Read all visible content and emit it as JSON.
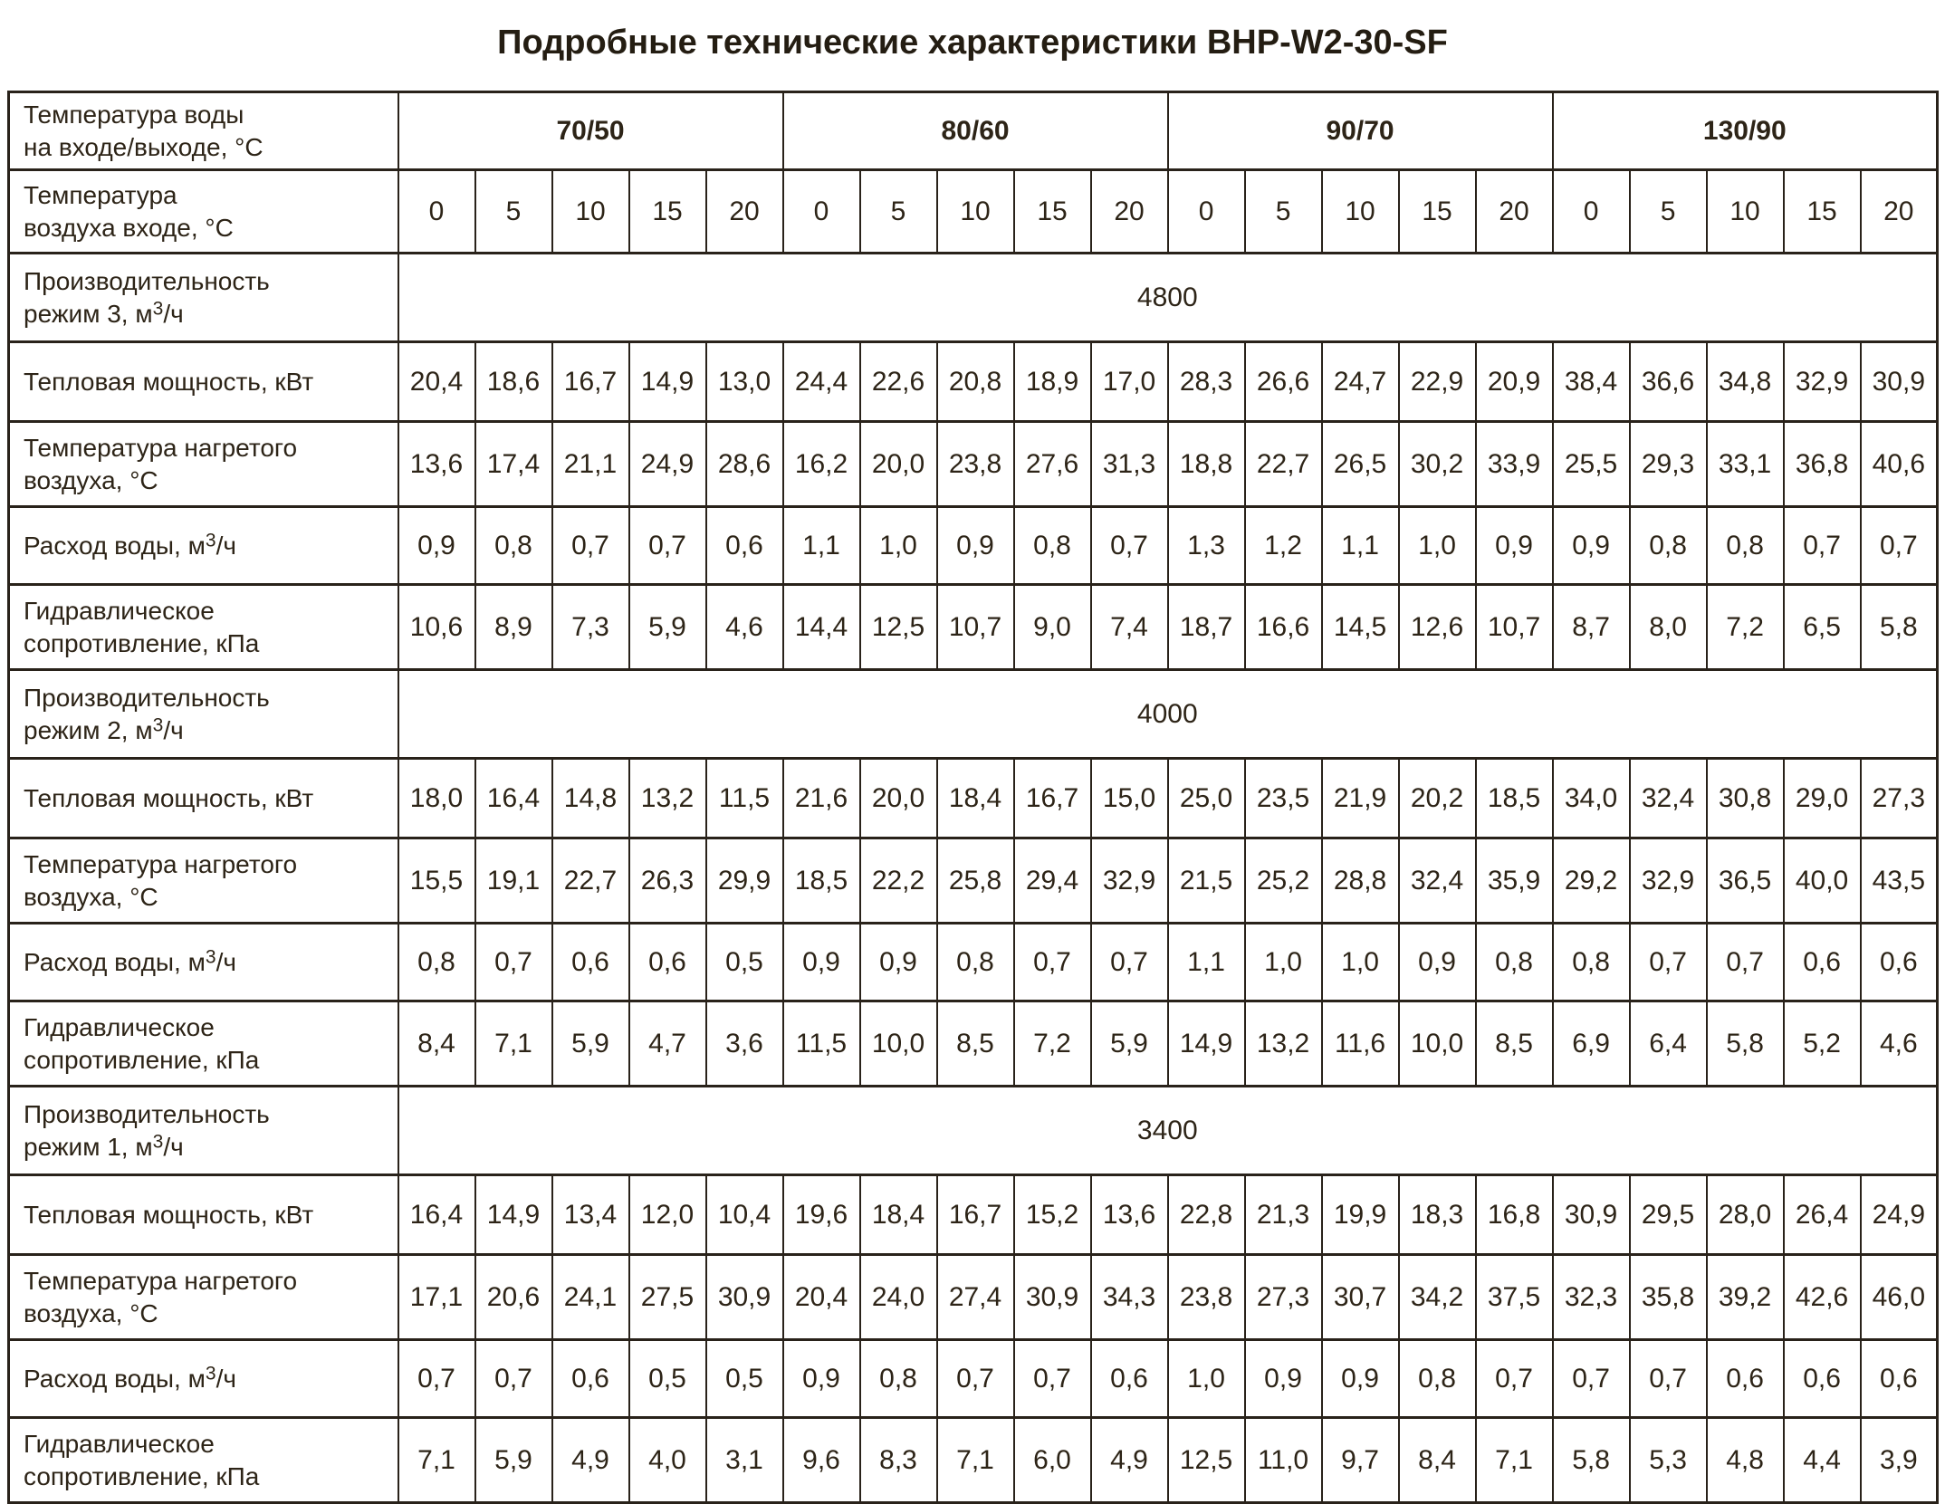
{
  "title": "Подробные технические характеристики BHP-W2-30-SF",
  "header": {
    "water_temp_label": "Температура воды\nна входе/выходе, °С",
    "water_temps": [
      "70/50",
      "80/60",
      "90/70",
      "130/90"
    ],
    "air_temp_label": "Температура\nвоздуха входе, °С",
    "air_temps": [
      "0",
      "5",
      "10",
      "15",
      "20"
    ]
  },
  "modes": [
    {
      "capacity_label": "Производительность\nрежим 3, м³/ч",
      "capacity_value": "4800",
      "rows": [
        {
          "label": "Тепловая мощность, кВт",
          "values": [
            "20,4",
            "18,6",
            "16,7",
            "14,9",
            "13,0",
            "24,4",
            "22,6",
            "20,8",
            "18,9",
            "17,0",
            "28,3",
            "26,6",
            "24,7",
            "22,9",
            "20,9",
            "38,4",
            "36,6",
            "34,8",
            "32,9",
            "30,9"
          ]
        },
        {
          "label": "Температура нагретого\nвоздуха, °С",
          "values": [
            "13,6",
            "17,4",
            "21,1",
            "24,9",
            "28,6",
            "16,2",
            "20,0",
            "23,8",
            "27,6",
            "31,3",
            "18,8",
            "22,7",
            "26,5",
            "30,2",
            "33,9",
            "25,5",
            "29,3",
            "33,1",
            "36,8",
            "40,6"
          ]
        },
        {
          "label": "Расход воды, м³/ч",
          "values": [
            "0,9",
            "0,8",
            "0,7",
            "0,7",
            "0,6",
            "1,1",
            "1,0",
            "0,9",
            "0,8",
            "0,7",
            "1,3",
            "1,2",
            "1,1",
            "1,0",
            "0,9",
            "0,9",
            "0,8",
            "0,8",
            "0,7",
            "0,7"
          ]
        },
        {
          "label": "Гидравлическое\nсопротивление, кПа",
          "values": [
            "10,6",
            "8,9",
            "7,3",
            "5,9",
            "4,6",
            "14,4",
            "12,5",
            "10,7",
            "9,0",
            "7,4",
            "18,7",
            "16,6",
            "14,5",
            "12,6",
            "10,7",
            "8,7",
            "8,0",
            "7,2",
            "6,5",
            "5,8"
          ]
        }
      ]
    },
    {
      "capacity_label": "Производительность\nрежим 2, м³/ч",
      "capacity_value": "4000",
      "rows": [
        {
          "label": "Тепловая мощность, кВт",
          "values": [
            "18,0",
            "16,4",
            "14,8",
            "13,2",
            "11,5",
            "21,6",
            "20,0",
            "18,4",
            "16,7",
            "15,0",
            "25,0",
            "23,5",
            "21,9",
            "20,2",
            "18,5",
            "34,0",
            "32,4",
            "30,8",
            "29,0",
            "27,3"
          ]
        },
        {
          "label": "Температура нагретого\nвоздуха, °С",
          "values": [
            "15,5",
            "19,1",
            "22,7",
            "26,3",
            "29,9",
            "18,5",
            "22,2",
            "25,8",
            "29,4",
            "32,9",
            "21,5",
            "25,2",
            "28,8",
            "32,4",
            "35,9",
            "29,2",
            "32,9",
            "36,5",
            "40,0",
            "43,5"
          ]
        },
        {
          "label": "Расход воды, м³/ч",
          "values": [
            "0,8",
            "0,7",
            "0,6",
            "0,6",
            "0,5",
            "0,9",
            "0,9",
            "0,8",
            "0,7",
            "0,7",
            "1,1",
            "1,0",
            "1,0",
            "0,9",
            "0,8",
            "0,8",
            "0,7",
            "0,7",
            "0,6",
            "0,6"
          ]
        },
        {
          "label": "Гидравлическое\nсопротивление, кПа",
          "values": [
            "8,4",
            "7,1",
            "5,9",
            "4,7",
            "3,6",
            "11,5",
            "10,0",
            "8,5",
            "7,2",
            "5,9",
            "14,9",
            "13,2",
            "11,6",
            "10,0",
            "8,5",
            "6,9",
            "6,4",
            "5,8",
            "5,2",
            "4,6"
          ]
        }
      ]
    },
    {
      "capacity_label": "Производительность\nрежим 1, м³/ч",
      "capacity_value": "3400",
      "rows": [
        {
          "label": "Тепловая мощность, кВт",
          "values": [
            "16,4",
            "14,9",
            "13,4",
            "12,0",
            "10,4",
            "19,6",
            "18,4",
            "16,7",
            "15,2",
            "13,6",
            "22,8",
            "21,3",
            "19,9",
            "18,3",
            "16,8",
            "30,9",
            "29,5",
            "28,0",
            "26,4",
            "24,9"
          ]
        },
        {
          "label": "Температура нагретого\nвоздуха, °С",
          "values": [
            "17,1",
            "20,6",
            "24,1",
            "27,5",
            "30,9",
            "20,4",
            "24,0",
            "27,4",
            "30,9",
            "34,3",
            "23,8",
            "27,3",
            "30,7",
            "34,2",
            "37,5",
            "32,3",
            "35,8",
            "39,2",
            "42,6",
            "46,0"
          ]
        },
        {
          "label": "Расход воды, м³/ч",
          "values": [
            "0,7",
            "0,7",
            "0,6",
            "0,5",
            "0,5",
            "0,9",
            "0,8",
            "0,7",
            "0,7",
            "0,6",
            "1,0",
            "0,9",
            "0,9",
            "0,8",
            "0,7",
            "0,7",
            "0,7",
            "0,6",
            "0,6",
            "0,6"
          ]
        },
        {
          "label": "Гидравлическое\nсопротивление, кПа",
          "values": [
            "7,1",
            "5,9",
            "4,9",
            "4,0",
            "3,1",
            "9,6",
            "8,3",
            "7,1",
            "6,0",
            "4,9",
            "12,5",
            "11,0",
            "9,7",
            "8,4",
            "7,1",
            "5,8",
            "5,3",
            "4,8",
            "4,4",
            "3,9"
          ]
        }
      ]
    }
  ]
}
